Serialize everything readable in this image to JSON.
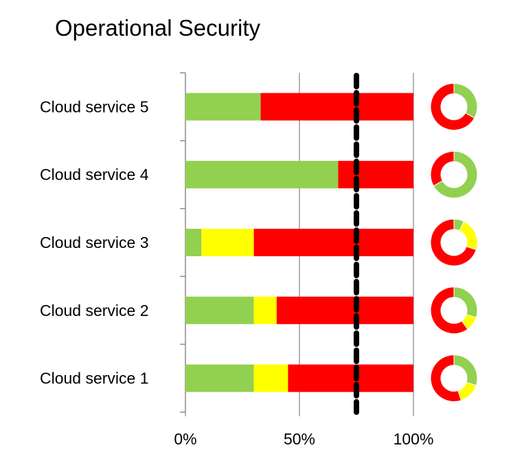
{
  "chart_data": {
    "type": "bar",
    "orientation": "horizontal",
    "stacked": true,
    "title": "Operational Security",
    "categories": [
      "Cloud service 5",
      "Cloud service 4",
      "Cloud service 3",
      "Cloud service 2",
      "Cloud service 1"
    ],
    "series": [
      {
        "color": "#92d050",
        "values": [
          33,
          67,
          7,
          30,
          30
        ]
      },
      {
        "color": "#ffff00",
        "values": [
          0,
          0,
          23,
          10,
          15
        ]
      },
      {
        "color": "#ff0000",
        "values": [
          67,
          33,
          70,
          60,
          55
        ]
      }
    ],
    "xlim": [
      0,
      100
    ],
    "x_ticks": [
      "0%",
      "50%",
      "100%"
    ],
    "x_tick_values": [
      0,
      50,
      100
    ],
    "vertical_gridlines": true,
    "threshold_line": {
      "value": 75,
      "style": "dashed",
      "color": "#000000"
    },
    "donut_per_category": true
  }
}
